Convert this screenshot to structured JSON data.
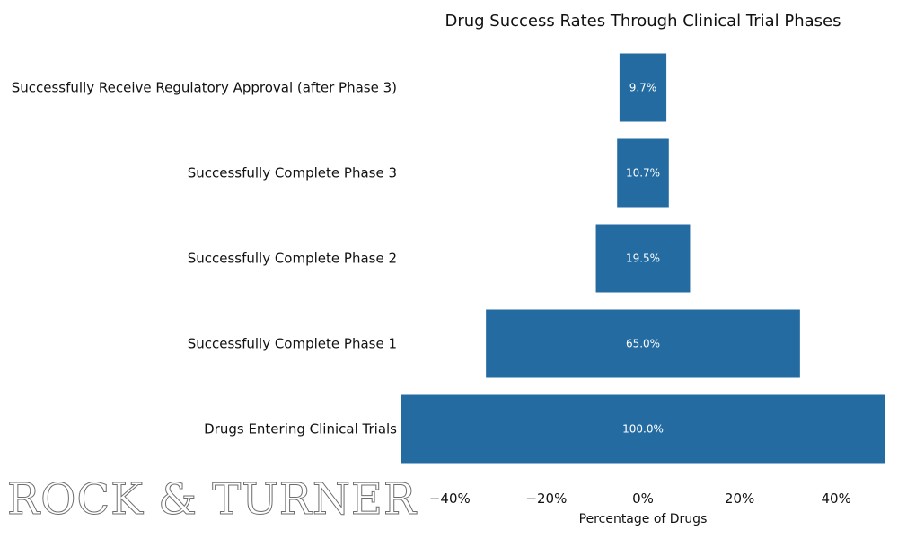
{
  "chart_data": {
    "type": "bar",
    "orientation": "horizontal",
    "style": "funnel",
    "title": "Drug Success Rates Through Clinical Trial Phases",
    "xlabel": "Percentage of Drugs",
    "ylabel": "",
    "categories": [
      "Drugs Entering Clinical Trials",
      "Successfully Complete Phase 1",
      "Successfully Complete Phase 2",
      "Successfully Complete Phase 3",
      "Successfully Receive Regulatory Approval (after Phase 3)"
    ],
    "values": [
      100.0,
      65.0,
      19.5,
      10.7,
      9.7
    ],
    "data_labels": [
      "100.0%",
      "65.0%",
      "19.5%",
      "10.7%",
      "9.7%"
    ],
    "xlim": [
      -50,
      50
    ],
    "xticks": [
      -40,
      -20,
      0,
      20,
      40
    ],
    "xtick_labels": [
      "−40%",
      "−20%",
      "0%",
      "20%",
      "40%"
    ],
    "grid": false,
    "bar_color": "#236ba0"
  },
  "watermark": "ROCK & TURNER"
}
